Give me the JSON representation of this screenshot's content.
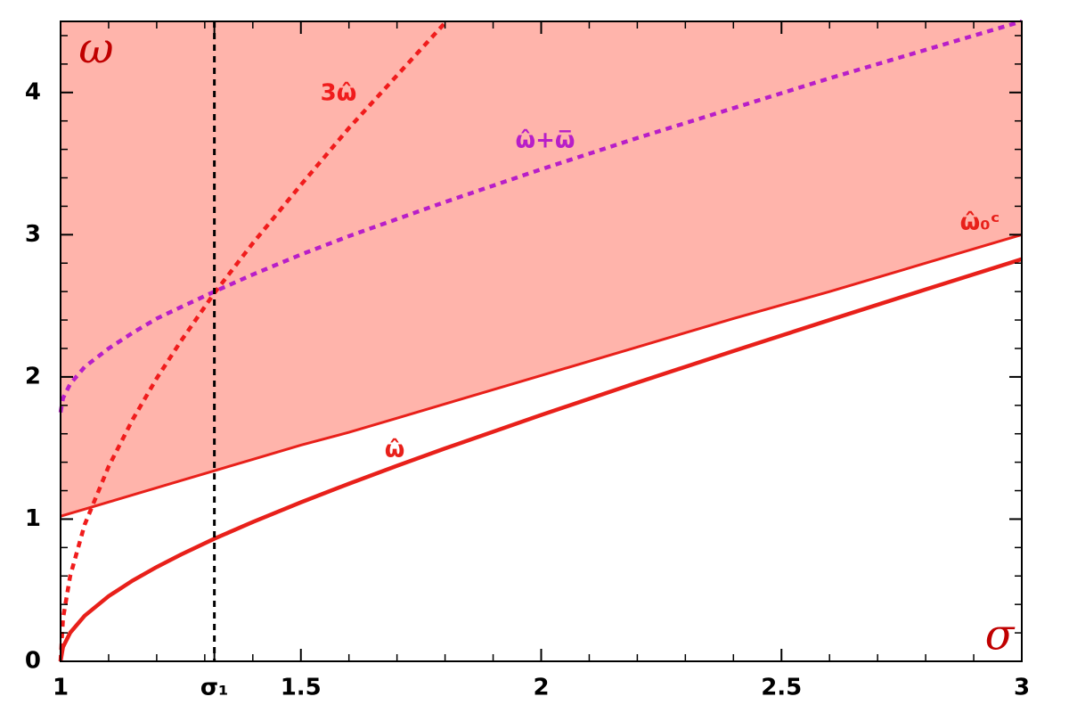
{
  "chart_data": {
    "type": "line",
    "x_label": "σ",
    "y_label": "ω",
    "x": [
      1,
      1.005,
      1.02,
      1.05,
      1.1,
      1.15,
      1.2,
      1.25,
      1.32,
      1.4,
      1.5,
      1.6,
      1.7,
      1.8,
      2,
      2.2,
      2.4,
      2.6,
      2.8,
      3
    ],
    "series": [
      {
        "name": "ω̂₀ᶜ",
        "color": "#e8201a",
        "dash": false,
        "width": 3,
        "shade_above": true,
        "shade_color": "#ffb4ab",
        "values": [
          1.02,
          1.025,
          1.04,
          1.07,
          1.12,
          1.17,
          1.22,
          1.27,
          1.34,
          1.42,
          1.52,
          1.61,
          1.71,
          1.81,
          2.01,
          2.21,
          2.41,
          2.6,
          2.8,
          3.0
        ]
      },
      {
        "name": "ω̂",
        "color": "#e8201a",
        "dash": false,
        "width": 4.5,
        "shade_above": false,
        "values": [
          0,
          0.1,
          0.201,
          0.32,
          0.458,
          0.568,
          0.663,
          0.75,
          0.862,
          0.98,
          1.118,
          1.249,
          1.375,
          1.497,
          1.732,
          1.96,
          2.182,
          2.4,
          2.615,
          2.828
        ]
      },
      {
        "name": "3ω̂",
        "color": "#f01c1c",
        "dash": true,
        "width": 4.5,
        "shade_above": false,
        "values": [
          0,
          0.3,
          0.6,
          0.96,
          1.37,
          1.7,
          1.99,
          2.25,
          2.59,
          2.94,
          3.35,
          3.75,
          4.12,
          4.49,
          null,
          null,
          null,
          null,
          null,
          null
        ]
      },
      {
        "name": "ω̂+ω̅",
        "color": "#b81ec8",
        "dash": true,
        "width": 4.5,
        "shade_above": false,
        "values": [
          1.75,
          1.85,
          1.95,
          2.07,
          2.2,
          2.31,
          2.41,
          2.49,
          2.6,
          2.72,
          2.86,
          2.99,
          3.11,
          3.23,
          3.46,
          3.68,
          3.89,
          4.1,
          4.3,
          4.5
        ]
      }
    ],
    "xlim": [
      1,
      3
    ],
    "ylim": [
      0,
      4.5
    ],
    "xticks": [
      1,
      {
        "value": 1.32,
        "label": "σ₁"
      },
      1.5,
      2,
      2.5,
      3
    ],
    "yticks": [
      0,
      1,
      2,
      3,
      4
    ],
    "xminorticks": [
      1.1,
      1.2,
      1.3,
      1.4,
      1.6,
      1.7,
      1.8,
      1.9,
      2.1,
      2.2,
      2.3,
      2.4,
      2.6,
      2.7,
      2.8,
      2.9
    ],
    "yminorticks": [
      0.2,
      0.4,
      0.6,
      0.8,
      1.2,
      1.4,
      1.6,
      1.8,
      2.2,
      2.4,
      2.6,
      2.8,
      3.2,
      3.4,
      3.6,
      3.8,
      4.2,
      4.4
    ],
    "vline": 1.32
  }
}
